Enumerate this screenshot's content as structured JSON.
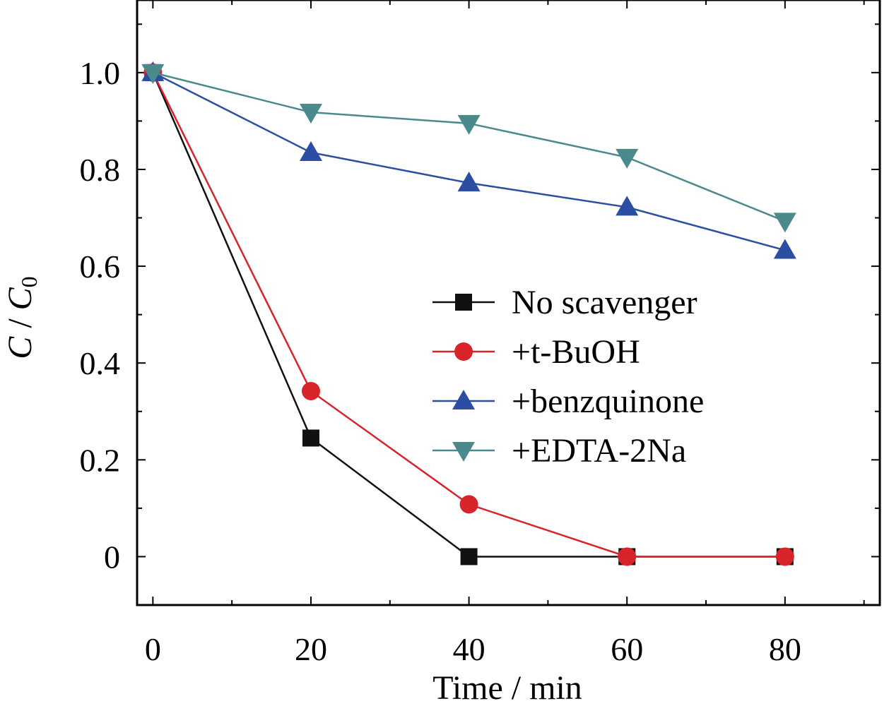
{
  "chart_data": {
    "type": "line",
    "xlabel": "Time / min",
    "ylabel_main": "C",
    "ylabel_sep": " / ",
    "ylabel_sub_base": "C",
    "ylabel_sub": "0",
    "x": [
      0,
      20,
      40,
      60,
      80
    ],
    "xlim": [
      -2,
      92
    ],
    "ylim": [
      -0.1,
      1.15
    ],
    "xticks": [
      0,
      20,
      40,
      60,
      80
    ],
    "xtick_labels": [
      "0",
      "20",
      "40",
      "60",
      "80"
    ],
    "yticks": [
      0,
      0.2,
      0.4,
      0.6,
      0.8,
      1.0
    ],
    "ytick_labels": [
      "0",
      "0.2",
      "0.4",
      "0.6",
      "0.8",
      "1.0"
    ],
    "x_minor_step": 10,
    "y_minor_step": 0.1,
    "grid": false,
    "legend_position": "center-right",
    "series": [
      {
        "name": "No scavenger",
        "marker": "square",
        "color": "#111111",
        "values": [
          1.0,
          0.245,
          0.0,
          0.0,
          0.0
        ]
      },
      {
        "name": "+t-BuOH",
        "marker": "circle",
        "color": "#d9232a",
        "values": [
          1.0,
          0.342,
          0.108,
          0.0,
          0.0
        ]
      },
      {
        "name": "+benzquinone",
        "marker": "triangle-up",
        "color": "#2b4ea2",
        "values": [
          1.0,
          0.835,
          0.772,
          0.722,
          0.633
        ]
      },
      {
        "name": "+EDTA-2Na",
        "marker": "triangle-down",
        "color": "#4a8a8c",
        "values": [
          1.0,
          0.918,
          0.895,
          0.825,
          0.693
        ]
      }
    ]
  }
}
